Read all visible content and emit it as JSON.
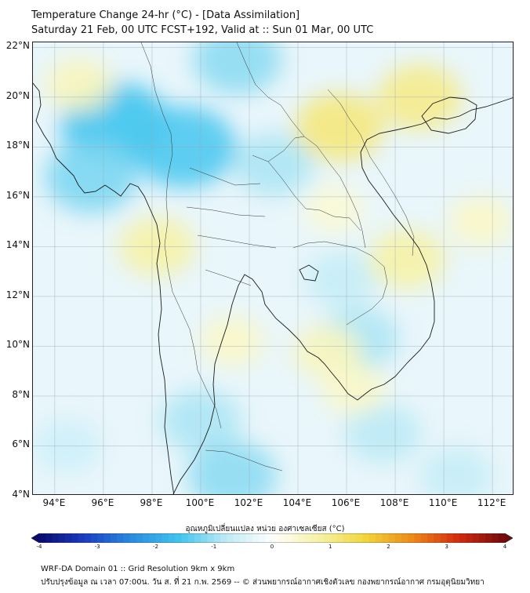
{
  "header": {
    "title": "Temperature Change 24-hr (°C) - [Data Assimilation]",
    "subtitle": "Saturday 21 Feb, 00 UTC FCST+192, Valid at :: Sun 01 Mar, 00 UTC"
  },
  "axes": {
    "lat_labels": [
      "22°N",
      "20°N",
      "18°N",
      "16°N",
      "14°N",
      "12°N",
      "10°N",
      "8°N",
      "6°N",
      "4°N"
    ],
    "lat_values": [
      22,
      20,
      18,
      16,
      14,
      12,
      10,
      8,
      6,
      4
    ],
    "lon_labels": [
      "94°E",
      "96°E",
      "98°E",
      "100°E",
      "102°E",
      "104°E",
      "106°E",
      "108°E",
      "110°E",
      "112°E"
    ],
    "lon_values": [
      94,
      96,
      98,
      100,
      102,
      104,
      106,
      108,
      110,
      112
    ],
    "lon_range": [
      93.1,
      112.9
    ],
    "lat_range": [
      4.0,
      22.2
    ]
  },
  "colorbar": {
    "title": "อุณหภูมิเปลี่ยนแปลง หน่วย องศาเซลเซียส (°C)",
    "ticks": [
      "-4",
      "-3",
      "-2",
      "-1",
      "0",
      "1",
      "2",
      "3",
      "4"
    ],
    "tick_values": [
      -4,
      -3,
      -2,
      -1,
      0,
      1,
      2,
      3,
      4
    ],
    "range": [
      -4,
      4
    ],
    "colors": [
      "#0a0a6e",
      "#1a3fc4",
      "#2a8de0",
      "#3fc4ee",
      "#bdeaf5",
      "#ffffff",
      "#f6f2a6",
      "#f2d638",
      "#ef8a18",
      "#d42a10",
      "#700a0a"
    ]
  },
  "footer": {
    "line1": "WRF-DA Domain 01 :: Grid Resolution 9km x 9km",
    "line2": "ปรับปรุงข้อมูล ณ เวลา 07:00น. วัน ส. ที่ 21 ก.พ. 2569 -- © ส่วนพยากรณ์อากาศเชิงตัวเลข กองพยากรณ์อากาศ กรมอุตุนิยมวิทยา"
  },
  "map": {
    "background_color": "#e9f6fb",
    "anomalies": [
      {
        "region": "Myanmar north",
        "lon": 96.5,
        "lat": 18.9,
        "value": -1.6
      },
      {
        "region": "Myanmar northeast",
        "lon": 99.3,
        "lat": 18.0,
        "value": -1.5
      },
      {
        "region": "Bay of Bengal east",
        "lon": 95.5,
        "lat": 16.8,
        "value": -1.2
      },
      {
        "region": "Yunnan south",
        "lon": 101.5,
        "lat": 21.5,
        "value": -1.1
      },
      {
        "region": "Laos north",
        "lon": 103.0,
        "lat": 17.3,
        "value": -0.9
      },
      {
        "region": "Gulf of Thailand south",
        "lon": 100.0,
        "lat": 7.0,
        "value": -0.9
      },
      {
        "region": "Malay peninsula",
        "lon": 101.3,
        "lat": 4.8,
        "value": -1.1
      },
      {
        "region": "Cambodia coast",
        "lon": 106.5,
        "lat": 10.3,
        "value": -0.9
      },
      {
        "region": "South China Sea center",
        "lon": 107.5,
        "lat": 6.5,
        "value": -0.8
      },
      {
        "region": "Vietnam south",
        "lon": 105.8,
        "lat": 12.7,
        "value": -0.7
      },
      {
        "region": "South China Sea south",
        "lon": 110.5,
        "lat": 4.8,
        "value": -0.7
      },
      {
        "region": "Andaman Sea",
        "lon": 94.5,
        "lat": 6.0,
        "value": -0.6
      },
      {
        "region": "Laos central",
        "lon": 105.7,
        "lat": 18.8,
        "value": 1.1
      },
      {
        "region": "Hainan",
        "lon": 109.0,
        "lat": 20.0,
        "value": 1.0
      },
      {
        "region": "Myanmar south",
        "lon": 98.2,
        "lat": 14.0,
        "value": 0.8
      },
      {
        "region": "Vietnam central coast",
        "lon": 108.5,
        "lat": 13.5,
        "value": 0.8
      },
      {
        "region": "Bay of Bengal north",
        "lon": 95.0,
        "lat": 20.5,
        "value": 0.6
      },
      {
        "region": "South China Sea north",
        "lon": 111.5,
        "lat": 15.0,
        "value": 0.5
      },
      {
        "region": "Gulf of Thailand north",
        "lon": 101.3,
        "lat": 10.2,
        "value": 0.5
      },
      {
        "region": "Mekong delta",
        "lon": 105.2,
        "lat": 9.8,
        "value": 0.6
      },
      {
        "region": "South China Sea west",
        "lon": 106.3,
        "lat": 8.3,
        "value": 0.5
      },
      {
        "region": "Laos south",
        "lon": 105.5,
        "lat": 15.5,
        "value": 0.4
      }
    ]
  }
}
